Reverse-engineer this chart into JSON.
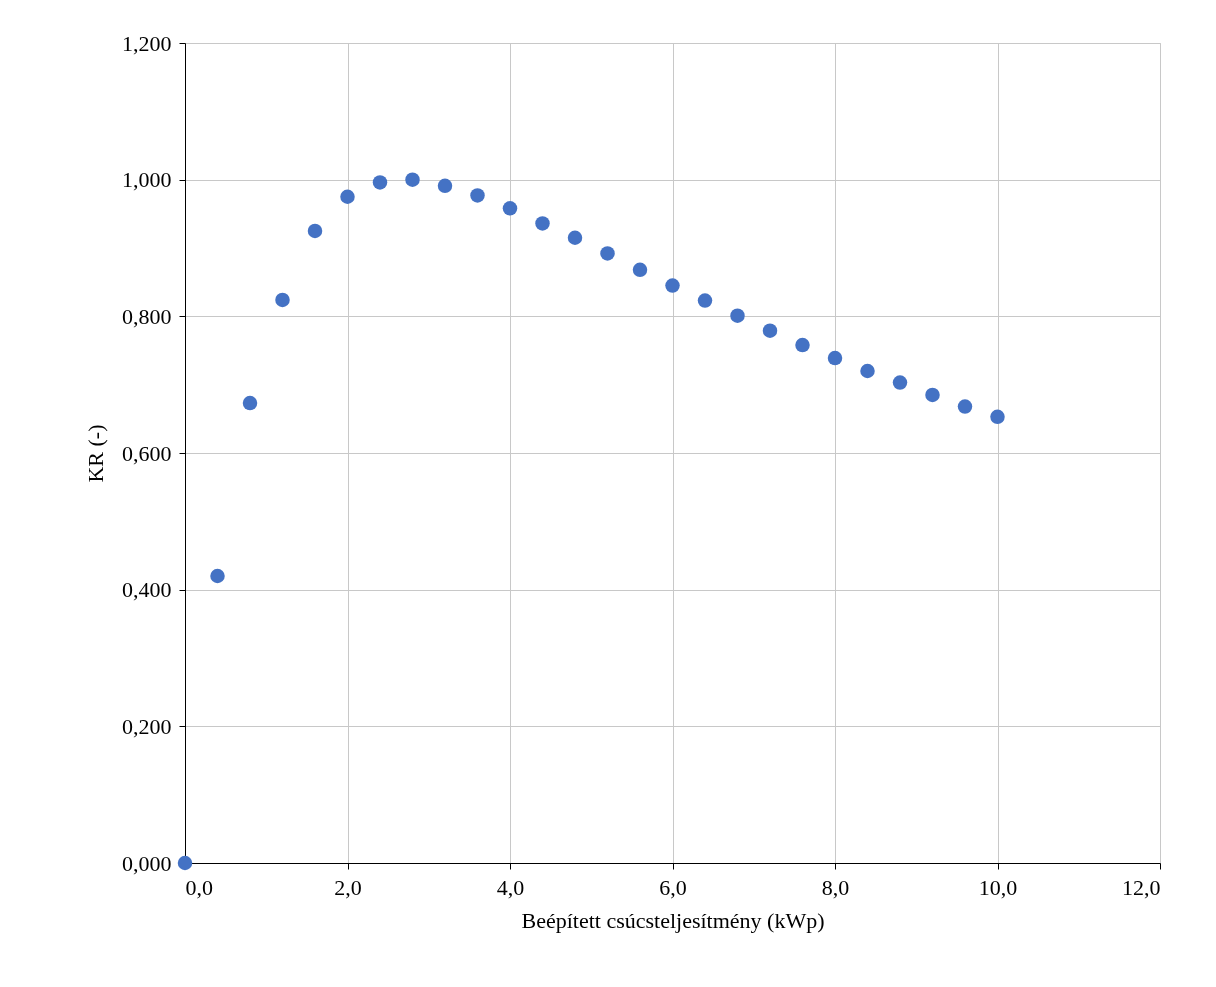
{
  "chart_data": {
    "type": "scatter",
    "xlabel": "Beépített csúcsteljesítmény (kWp)",
    "ylabel": "KR (-)",
    "x": [
      0,
      0.4,
      0.8,
      1.2,
      1.6,
      2.0,
      2.4,
      2.8,
      3.2,
      3.6,
      4.0,
      4.4,
      4.8,
      5.2,
      5.6,
      6.0,
      6.4,
      6.8,
      7.2,
      7.6,
      8.0,
      8.4,
      8.8,
      9.2,
      9.6,
      10.0
    ],
    "series": [
      {
        "color": "#4472c4",
        "values": [
          0,
          0.42,
          0.673,
          0.824,
          0.925,
          0.975,
          0.996,
          1.0,
          0.991,
          0.977,
          0.958,
          0.936,
          0.915,
          0.892,
          0.868,
          0.845,
          0.823,
          0.801,
          0.779,
          0.758,
          0.739,
          0.72,
          0.703,
          0.685,
          0.668,
          0.653
        ]
      }
    ],
    "xlim": [
      0,
      12
    ],
    "xticks": [
      {
        "value": 0,
        "label": "0,0"
      },
      {
        "value": 2,
        "label": "2,0"
      },
      {
        "value": 4,
        "label": "4,0"
      },
      {
        "value": 6,
        "label": "6,0"
      },
      {
        "value": 8,
        "label": "8,0"
      },
      {
        "value": 10,
        "label": "10,0"
      },
      {
        "value": 12,
        "label": "12,0"
      }
    ],
    "ylim": [
      0,
      1.2
    ],
    "yticks": [
      {
        "value": 0,
        "label": "0,000"
      },
      {
        "value": 0.2,
        "label": "0,200"
      },
      {
        "value": 0.4,
        "label": "0,400"
      },
      {
        "value": 0.6,
        "label": "0,600"
      },
      {
        "value": 0.8,
        "label": "0,800"
      },
      {
        "value": 1.0,
        "label": "1,000"
      },
      {
        "value": 1.2,
        "label": "1,200"
      }
    ],
    "grid": true,
    "marker": "circle"
  }
}
